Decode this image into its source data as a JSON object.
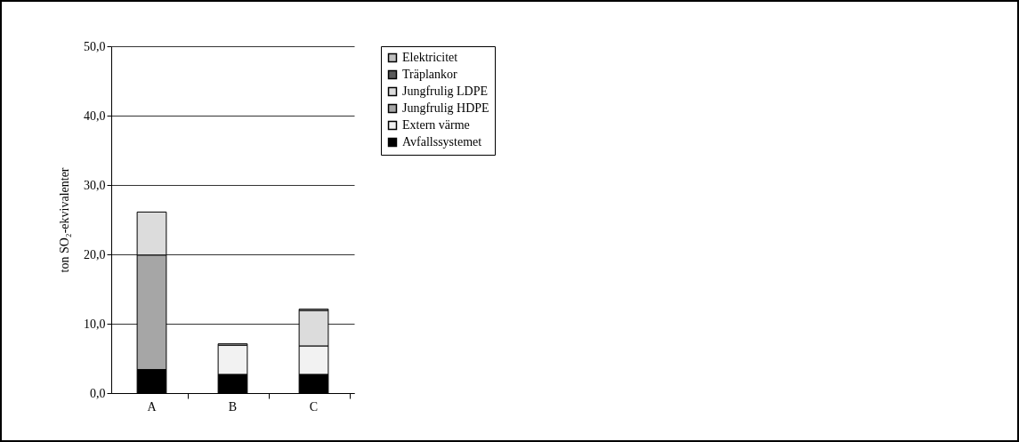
{
  "chart_data": {
    "type": "bar",
    "stacked": true,
    "ylabel": "ton SO₂-ekvivalenter",
    "categories": [
      "A",
      "B",
      "C"
    ],
    "series": [
      {
        "name": "Avfallssystemet",
        "color": "#000000",
        "values": [
          3.4,
          2.7,
          2.7
        ]
      },
      {
        "name": "Extern värme",
        "color": "#f2f2f2",
        "values": [
          0,
          4.2,
          4.1
        ]
      },
      {
        "name": "Jungfrulig HDPE",
        "color": "#a6a6a6",
        "values": [
          16.5,
          0,
          0
        ]
      },
      {
        "name": "Jungfrulig LDPE",
        "color": "#dcdcdc",
        "values": [
          6.2,
          0,
          5.1
        ]
      },
      {
        "name": "Träplankor",
        "color": "#595959",
        "values": [
          0,
          0,
          0
        ]
      },
      {
        "name": "Elektricitet",
        "color": "#bfbfbf",
        "values": [
          0,
          0.2,
          0.2
        ]
      }
    ],
    "ylim": [
      0,
      50
    ],
    "yticks": [
      {
        "value": 0,
        "label": "0,0"
      },
      {
        "value": 10,
        "label": "10,0"
      },
      {
        "value": 20,
        "label": "20,0"
      },
      {
        "value": 30,
        "label": "30,0"
      },
      {
        "value": 40,
        "label": "40,0"
      },
      {
        "value": 50,
        "label": "50,0"
      }
    ],
    "grid": "y",
    "legend": "right"
  }
}
